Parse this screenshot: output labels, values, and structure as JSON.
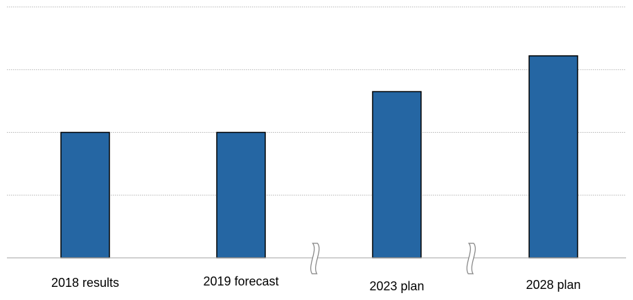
{
  "chart_data": {
    "type": "bar",
    "categories": [
      "2018 results",
      "2019 forecast",
      "2023 plan",
      "2028 plan"
    ],
    "values": [
      2,
      2,
      2.65,
      3.22
    ],
    "ylim": [
      0,
      4
    ],
    "grid": true,
    "axis_break_markers": true,
    "title": "",
    "xlabel": "",
    "ylabel": ""
  },
  "colors": {
    "bar_fill": "#2566a3",
    "bar_stroke": "#000000",
    "grid": "#b4b4b4",
    "axis": "#b4b4b4",
    "break_marker": "#808080"
  }
}
